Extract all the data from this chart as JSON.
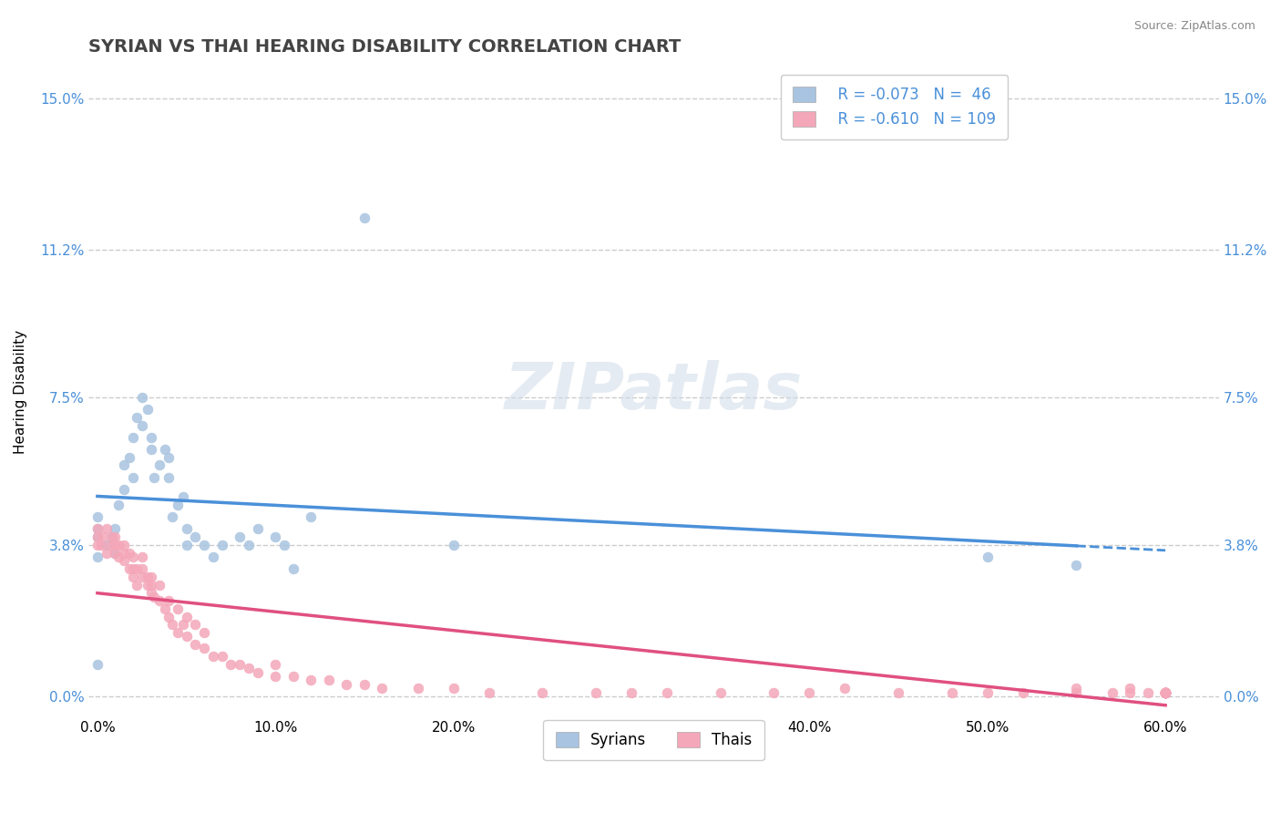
{
  "title": "SYRIAN VS THAI HEARING DISABILITY CORRELATION CHART",
  "source": "Source: ZipAtlas.com",
  "ylabel": "Hearing Disability",
  "xlabel_ticks": [
    "0.0%",
    "10.0%",
    "20.0%",
    "30.0%",
    "40.0%",
    "50.0%",
    "60.0%"
  ],
  "xlabel_vals": [
    0.0,
    0.1,
    0.2,
    0.3,
    0.4,
    0.5,
    0.6
  ],
  "ytick_labels": [
    "0.0%",
    "3.8%",
    "7.5%",
    "11.2%",
    "15.0%"
  ],
  "ytick_vals": [
    0.0,
    0.038,
    0.075,
    0.112,
    0.15
  ],
  "xlim": [
    -0.005,
    0.63
  ],
  "ylim": [
    -0.005,
    0.158
  ],
  "syrian_color": "#a8c4e0",
  "thai_color": "#f4a7b9",
  "syrian_line_color": "#4a90d9",
  "thai_line_color": "#e05080",
  "R_syrian": -0.073,
  "N_syrian": 46,
  "R_thai": -0.61,
  "N_thai": 109,
  "legend_labels": [
    "Syrians",
    "Thais"
  ],
  "watermark": "ZIPatlas",
  "title_fontsize": 14,
  "axis_label_fontsize": 11,
  "tick_fontsize": 11,
  "legend_fontsize": 12,
  "syrian_points_x": [
    0.0,
    0.0,
    0.0,
    0.0,
    0.0,
    0.005,
    0.008,
    0.01,
    0.01,
    0.012,
    0.015,
    0.015,
    0.018,
    0.02,
    0.02,
    0.022,
    0.025,
    0.025,
    0.028,
    0.03,
    0.03,
    0.032,
    0.035,
    0.038,
    0.04,
    0.04,
    0.042,
    0.045,
    0.048,
    0.05,
    0.05,
    0.055,
    0.06,
    0.065,
    0.07,
    0.08,
    0.085,
    0.09,
    0.1,
    0.105,
    0.11,
    0.12,
    0.15,
    0.2,
    0.5,
    0.55
  ],
  "syrian_points_y": [
    0.008,
    0.035,
    0.04,
    0.042,
    0.045,
    0.038,
    0.04,
    0.036,
    0.042,
    0.048,
    0.052,
    0.058,
    0.06,
    0.055,
    0.065,
    0.07,
    0.068,
    0.075,
    0.072,
    0.062,
    0.065,
    0.055,
    0.058,
    0.062,
    0.055,
    0.06,
    0.045,
    0.048,
    0.05,
    0.042,
    0.038,
    0.04,
    0.038,
    0.035,
    0.038,
    0.04,
    0.038,
    0.042,
    0.04,
    0.038,
    0.032,
    0.045,
    0.12,
    0.038,
    0.035,
    0.033
  ],
  "thai_points_x": [
    0.0,
    0.0,
    0.0,
    0.002,
    0.003,
    0.005,
    0.005,
    0.007,
    0.008,
    0.01,
    0.01,
    0.01,
    0.012,
    0.012,
    0.015,
    0.015,
    0.015,
    0.018,
    0.018,
    0.02,
    0.02,
    0.02,
    0.022,
    0.022,
    0.025,
    0.025,
    0.025,
    0.028,
    0.028,
    0.03,
    0.03,
    0.03,
    0.032,
    0.035,
    0.035,
    0.038,
    0.04,
    0.04,
    0.042,
    0.045,
    0.045,
    0.048,
    0.05,
    0.05,
    0.055,
    0.055,
    0.06,
    0.06,
    0.065,
    0.07,
    0.075,
    0.08,
    0.085,
    0.09,
    0.1,
    0.1,
    0.11,
    0.12,
    0.13,
    0.14,
    0.15,
    0.16,
    0.18,
    0.2,
    0.22,
    0.25,
    0.28,
    0.3,
    0.32,
    0.35,
    0.38,
    0.4,
    0.42,
    0.45,
    0.48,
    0.5,
    0.52,
    0.55,
    0.55,
    0.57,
    0.58,
    0.58,
    0.59,
    0.6,
    0.6,
    0.6,
    0.6,
    0.6,
    0.6,
    0.6,
    0.6,
    0.6,
    0.6,
    0.6,
    0.6,
    0.6,
    0.6,
    0.6,
    0.6,
    0.6,
    0.6,
    0.6,
    0.6,
    0.6,
    0.6,
    0.6,
    0.6,
    0.6,
    0.6
  ],
  "thai_points_y": [
    0.038,
    0.04,
    0.042,
    0.038,
    0.04,
    0.036,
    0.042,
    0.038,
    0.04,
    0.036,
    0.038,
    0.04,
    0.035,
    0.038,
    0.034,
    0.036,
    0.038,
    0.032,
    0.036,
    0.03,
    0.032,
    0.035,
    0.028,
    0.032,
    0.03,
    0.032,
    0.035,
    0.028,
    0.03,
    0.026,
    0.028,
    0.03,
    0.025,
    0.024,
    0.028,
    0.022,
    0.02,
    0.024,
    0.018,
    0.016,
    0.022,
    0.018,
    0.015,
    0.02,
    0.013,
    0.018,
    0.012,
    0.016,
    0.01,
    0.01,
    0.008,
    0.008,
    0.007,
    0.006,
    0.005,
    0.008,
    0.005,
    0.004,
    0.004,
    0.003,
    0.003,
    0.002,
    0.002,
    0.002,
    0.001,
    0.001,
    0.001,
    0.001,
    0.001,
    0.001,
    0.001,
    0.001,
    0.002,
    0.001,
    0.001,
    0.001,
    0.001,
    0.001,
    0.002,
    0.001,
    0.001,
    0.002,
    0.001,
    0.001,
    0.001,
    0.001,
    0.001,
    0.001,
    0.001,
    0.001,
    0.001,
    0.001,
    0.001,
    0.001,
    0.001,
    0.001,
    0.001,
    0.001,
    0.001,
    0.001,
    0.001,
    0.001,
    0.001,
    0.001,
    0.001,
    0.001,
    0.001,
    0.001,
    0.001
  ]
}
